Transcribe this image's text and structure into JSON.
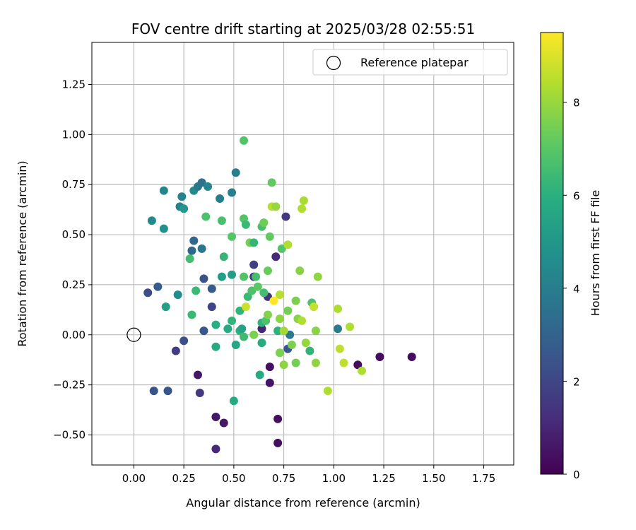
{
  "chart_data": {
    "type": "scatter",
    "title": "FOV centre drift starting at 2025/03/28 02:55:51",
    "xlabel": "Angular distance from reference (arcmin)",
    "ylabel": "Rotation from reference (arcmin)",
    "xlim": [
      -0.21,
      1.9
    ],
    "ylim": [
      -0.65,
      1.46
    ],
    "xticks": [
      {
        "value": 0.0,
        "label": "0.00"
      },
      {
        "value": 0.25,
        "label": "0.25"
      },
      {
        "value": 0.5,
        "label": "0.50"
      },
      {
        "value": 0.75,
        "label": "0.75"
      },
      {
        "value": 1.0,
        "label": "1.00"
      },
      {
        "value": 1.25,
        "label": "1.25"
      },
      {
        "value": 1.5,
        "label": "1.50"
      },
      {
        "value": 1.75,
        "label": "1.75"
      }
    ],
    "yticks": [
      {
        "value": -0.5,
        "label": "−0.50"
      },
      {
        "value": -0.25,
        "label": "−0.25"
      },
      {
        "value": 0.0,
        "label": "0.00"
      },
      {
        "value": 0.25,
        "label": "0.25"
      },
      {
        "value": 0.5,
        "label": "0.50"
      },
      {
        "value": 0.75,
        "label": "0.75"
      },
      {
        "value": 1.0,
        "label": "1.00"
      },
      {
        "value": 1.25,
        "label": "1.25"
      }
    ],
    "grid": true,
    "legend": {
      "position": "upper-right",
      "entries": [
        {
          "label": "Reference platepar",
          "marker": "open-circle"
        }
      ]
    },
    "reference_point": {
      "x": 0.0,
      "y": 0.0
    },
    "colorbar": {
      "label": "Hours from first FF file",
      "colormap": "viridis",
      "min": 0,
      "max": 9.5,
      "ticks": [
        {
          "value": 0,
          "label": "0"
        },
        {
          "value": 2,
          "label": "2"
        },
        {
          "value": 4,
          "label": "4"
        },
        {
          "value": 6,
          "label": "6"
        },
        {
          "value": 8,
          "label": "8"
        }
      ]
    },
    "points": [
      {
        "x": 0.07,
        "y": 0.21,
        "t": 2.2
      },
      {
        "x": 0.12,
        "y": 0.24,
        "t": 2.8
      },
      {
        "x": 0.1,
        "y": -0.28,
        "t": 2.5
      },
      {
        "x": 0.17,
        "y": -0.28,
        "t": 2.5
      },
      {
        "x": 0.21,
        "y": -0.08,
        "t": 1.7
      },
      {
        "x": 0.25,
        "y": -0.03,
        "t": 2.3
      },
      {
        "x": 0.32,
        "y": -0.2,
        "t": 0.6
      },
      {
        "x": 0.33,
        "y": -0.29,
        "t": 1.6
      },
      {
        "x": 0.41,
        "y": -0.41,
        "t": 0.6
      },
      {
        "x": 0.45,
        "y": -0.44,
        "t": 0.6
      },
      {
        "x": 0.41,
        "y": -0.57,
        "t": 1.1
      },
      {
        "x": 0.68,
        "y": -0.16,
        "t": 0.4
      },
      {
        "x": 0.68,
        "y": -0.24,
        "t": 0.5
      },
      {
        "x": 0.72,
        "y": -0.42,
        "t": 0.4
      },
      {
        "x": 0.72,
        "y": -0.54,
        "t": 0.4
      },
      {
        "x": 0.64,
        "y": 0.03,
        "t": 1.0
      },
      {
        "x": 0.35,
        "y": 0.28,
        "t": 2.4
      },
      {
        "x": 0.39,
        "y": 0.23,
        "t": 2.8
      },
      {
        "x": 0.39,
        "y": 0.14,
        "t": 2.0
      },
      {
        "x": 0.35,
        "y": 0.02,
        "t": 2.6
      },
      {
        "x": 0.3,
        "y": 0.47,
        "t": 3.2
      },
      {
        "x": 0.29,
        "y": 0.42,
        "t": 3.3
      },
      {
        "x": 0.34,
        "y": 0.43,
        "t": 3.7
      },
      {
        "x": 0.09,
        "y": 0.57,
        "t": 4.4
      },
      {
        "x": 0.15,
        "y": 0.53,
        "t": 4.7
      },
      {
        "x": 0.15,
        "y": 0.72,
        "t": 4.3
      },
      {
        "x": 0.24,
        "y": 0.69,
        "t": 4.2
      },
      {
        "x": 0.23,
        "y": 0.64,
        "t": 4.2
      },
      {
        "x": 0.25,
        "y": 0.63,
        "t": 5.0
      },
      {
        "x": 0.3,
        "y": 0.72,
        "t": 4.5
      },
      {
        "x": 0.32,
        "y": 0.74,
        "t": 3.8
      },
      {
        "x": 0.34,
        "y": 0.76,
        "t": 3.6
      },
      {
        "x": 0.37,
        "y": 0.74,
        "t": 4.3
      },
      {
        "x": 0.43,
        "y": 0.68,
        "t": 4.0
      },
      {
        "x": 0.49,
        "y": 0.71,
        "t": 4.1
      },
      {
        "x": 0.51,
        "y": 0.81,
        "t": 4.1
      },
      {
        "x": 0.16,
        "y": 0.14,
        "t": 5.3
      },
      {
        "x": 0.22,
        "y": 0.2,
        "t": 4.6
      },
      {
        "x": 0.6,
        "y": 0.35,
        "t": 1.8
      },
      {
        "x": 0.6,
        "y": 0.29,
        "t": 1.3
      },
      {
        "x": 0.67,
        "y": 0.19,
        "t": 1.5
      },
      {
        "x": 0.71,
        "y": 0.39,
        "t": 1.1
      },
      {
        "x": 0.76,
        "y": 0.59,
        "t": 1.6
      },
      {
        "x": 0.77,
        "y": -0.07,
        "t": 2.6
      },
      {
        "x": 0.78,
        "y": 0.0,
        "t": 3.8
      },
      {
        "x": 1.02,
        "y": 0.03,
        "t": 3.9
      },
      {
        "x": 1.12,
        "y": -0.15,
        "t": 0.3
      },
      {
        "x": 1.23,
        "y": -0.11,
        "t": 0.3
      },
      {
        "x": 1.39,
        "y": -0.11,
        "t": 0.3
      },
      {
        "x": 0.29,
        "y": 0.1,
        "t": 6.4
      },
      {
        "x": 0.31,
        "y": 0.22,
        "t": 6.4
      },
      {
        "x": 0.28,
        "y": 0.38,
        "t": 6.6
      },
      {
        "x": 0.36,
        "y": 0.59,
        "t": 6.8
      },
      {
        "x": 0.41,
        "y": 0.05,
        "t": 6.0
      },
      {
        "x": 0.41,
        "y": -0.06,
        "t": 5.8
      },
      {
        "x": 0.44,
        "y": 0.29,
        "t": 5.3
      },
      {
        "x": 0.45,
        "y": 0.39,
        "t": 6.3
      },
      {
        "x": 0.44,
        "y": 0.57,
        "t": 6.7
      },
      {
        "x": 0.47,
        "y": 0.03,
        "t": 5.8
      },
      {
        "x": 0.49,
        "y": 0.3,
        "t": 5.2
      },
      {
        "x": 0.49,
        "y": 0.49,
        "t": 7.0
      },
      {
        "x": 0.49,
        "y": 0.07,
        "t": 6.2
      },
      {
        "x": 0.5,
        "y": -0.33,
        "t": 5.8
      },
      {
        "x": 0.51,
        "y": -0.05,
        "t": 5.7
      },
      {
        "x": 0.53,
        "y": 0.12,
        "t": 6.2
      },
      {
        "x": 0.53,
        "y": 0.02,
        "t": 6.1
      },
      {
        "x": 0.54,
        "y": 0.03,
        "t": 5.5
      },
      {
        "x": 0.55,
        "y": -0.01,
        "t": 6.5
      },
      {
        "x": 0.55,
        "y": 0.29,
        "t": 6.9
      },
      {
        "x": 0.55,
        "y": 0.58,
        "t": 6.9
      },
      {
        "x": 0.55,
        "y": 0.97,
        "t": 6.9
      },
      {
        "x": 0.56,
        "y": 0.14,
        "t": 8.8
      },
      {
        "x": 0.56,
        "y": 0.55,
        "t": 6.4
      },
      {
        "x": 0.57,
        "y": 0.19,
        "t": 6.4
      },
      {
        "x": 0.58,
        "y": 0.46,
        "t": 7.5
      },
      {
        "x": 0.59,
        "y": 0.22,
        "t": 6.8
      },
      {
        "x": 0.6,
        "y": 0.0,
        "t": 7.6
      },
      {
        "x": 0.6,
        "y": 0.46,
        "t": 6.3
      },
      {
        "x": 0.61,
        "y": 0.29,
        "t": 6.6
      },
      {
        "x": 0.62,
        "y": 0.24,
        "t": 7.1
      },
      {
        "x": 0.63,
        "y": -0.2,
        "t": 5.8
      },
      {
        "x": 0.64,
        "y": -0.04,
        "t": 5.9
      },
      {
        "x": 0.64,
        "y": 0.06,
        "t": 6.1
      },
      {
        "x": 0.64,
        "y": 0.54,
        "t": 6.7
      },
      {
        "x": 0.65,
        "y": 0.21,
        "t": 6.6
      },
      {
        "x": 0.65,
        "y": 0.56,
        "t": 7.4
      },
      {
        "x": 0.66,
        "y": 0.07,
        "t": 6.8
      },
      {
        "x": 0.67,
        "y": 0.32,
        "t": 7.3
      },
      {
        "x": 0.67,
        "y": 0.1,
        "t": 7.7
      },
      {
        "x": 0.68,
        "y": 0.49,
        "t": 7.2
      },
      {
        "x": 0.69,
        "y": 0.64,
        "t": 8.5
      },
      {
        "x": 0.69,
        "y": 0.76,
        "t": 7.2
      },
      {
        "x": 0.7,
        "y": 0.17,
        "t": 9.5
      },
      {
        "x": 0.71,
        "y": 0.64,
        "t": 8.0
      },
      {
        "x": 0.72,
        "y": 0.02,
        "t": 6.1
      },
      {
        "x": 0.73,
        "y": 0.2,
        "t": 8.5
      },
      {
        "x": 0.73,
        "y": -0.09,
        "t": 7.6
      },
      {
        "x": 0.73,
        "y": 0.08,
        "t": 7.9
      },
      {
        "x": 0.74,
        "y": 0.43,
        "t": 6.9
      },
      {
        "x": 0.75,
        "y": -0.15,
        "t": 7.9
      },
      {
        "x": 0.75,
        "y": 0.02,
        "t": 8.2
      },
      {
        "x": 0.77,
        "y": 0.45,
        "t": 8.4
      },
      {
        "x": 0.77,
        "y": 0.12,
        "t": 7.5
      },
      {
        "x": 0.79,
        "y": -0.05,
        "t": 7.6
      },
      {
        "x": 0.81,
        "y": 0.17,
        "t": 7.6
      },
      {
        "x": 0.81,
        "y": -0.14,
        "t": 7.5
      },
      {
        "x": 0.82,
        "y": 0.08,
        "t": 7.8
      },
      {
        "x": 0.83,
        "y": 0.32,
        "t": 7.8
      },
      {
        "x": 0.84,
        "y": 0.63,
        "t": 8.4
      },
      {
        "x": 0.84,
        "y": 0.07,
        "t": 8.4
      },
      {
        "x": 0.85,
        "y": 0.67,
        "t": 8.3
      },
      {
        "x": 0.86,
        "y": -0.04,
        "t": 8.0
      },
      {
        "x": 0.88,
        "y": -0.08,
        "t": 6.2
      },
      {
        "x": 0.89,
        "y": 0.16,
        "t": 6.8
      },
      {
        "x": 0.9,
        "y": 0.14,
        "t": 8.7
      },
      {
        "x": 0.91,
        "y": 0.02,
        "t": 7.8
      },
      {
        "x": 0.91,
        "y": -0.14,
        "t": 7.9
      },
      {
        "x": 0.92,
        "y": 0.29,
        "t": 7.9
      },
      {
        "x": 0.97,
        "y": -0.28,
        "t": 8.4
      },
      {
        "x": 1.02,
        "y": 0.13,
        "t": 8.4
      },
      {
        "x": 1.03,
        "y": -0.07,
        "t": 8.6
      },
      {
        "x": 1.05,
        "y": -0.14,
        "t": 8.6
      },
      {
        "x": 1.08,
        "y": 0.04,
        "t": 8.4
      },
      {
        "x": 1.14,
        "y": -0.18,
        "t": 8.4
      }
    ]
  }
}
